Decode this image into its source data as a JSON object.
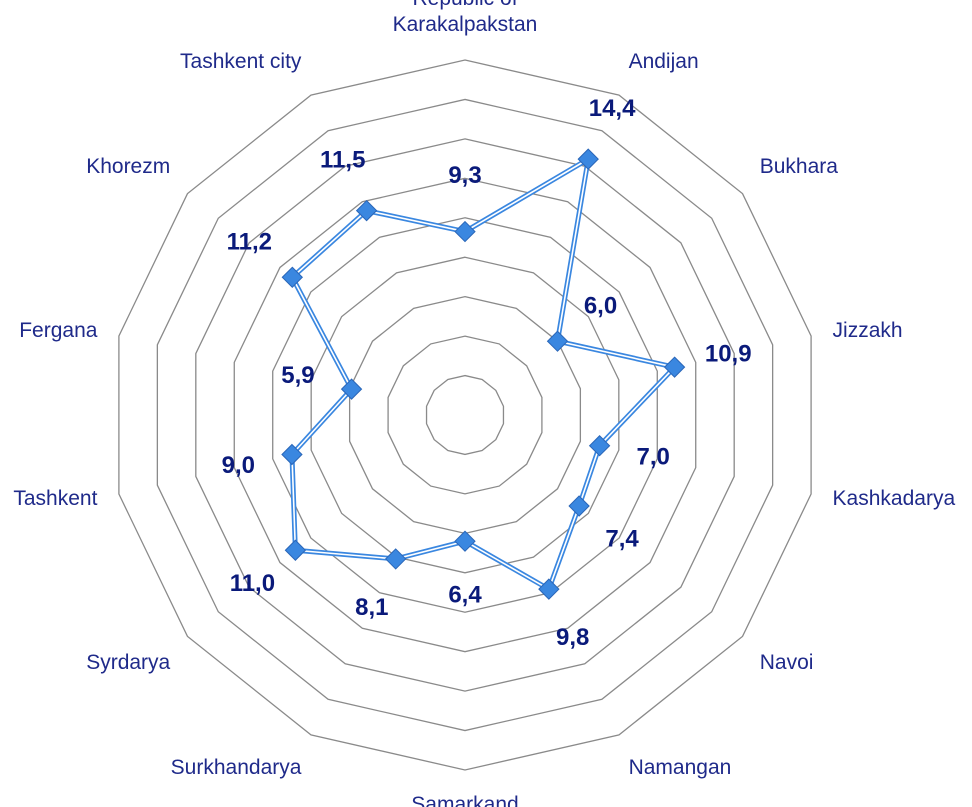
{
  "chart_data": {
    "type": "radar",
    "categories": [
      "Republic of Karakalpakstan",
      "Andijan",
      "Bukhara",
      "Jizzakh",
      "Kashkadarya",
      "Navoi",
      "Namangan",
      "Samarkand",
      "Surkhandarya",
      "Syrdarya",
      "Tashkent",
      "Fergana",
      "Khorezm",
      "Tashkent city"
    ],
    "values": [
      9.3,
      14.4,
      6.0,
      10.9,
      7.0,
      7.4,
      9.8,
      6.4,
      8.1,
      11.0,
      9.0,
      5.9,
      11.2,
      11.5
    ],
    "value_labels": [
      "9,3",
      "14,4",
      "6,0",
      "10,9",
      "7,0",
      "7,4",
      "9,8",
      "6,4",
      "8,1",
      "11,0",
      "9,0",
      "5,9",
      "11,2",
      "11,5"
    ],
    "color": "#3a87e0",
    "ylim": [
      0,
      18
    ],
    "yticks": [
      0,
      2,
      4,
      6,
      8,
      10,
      12,
      14,
      16,
      18
    ],
    "grid": true
  }
}
